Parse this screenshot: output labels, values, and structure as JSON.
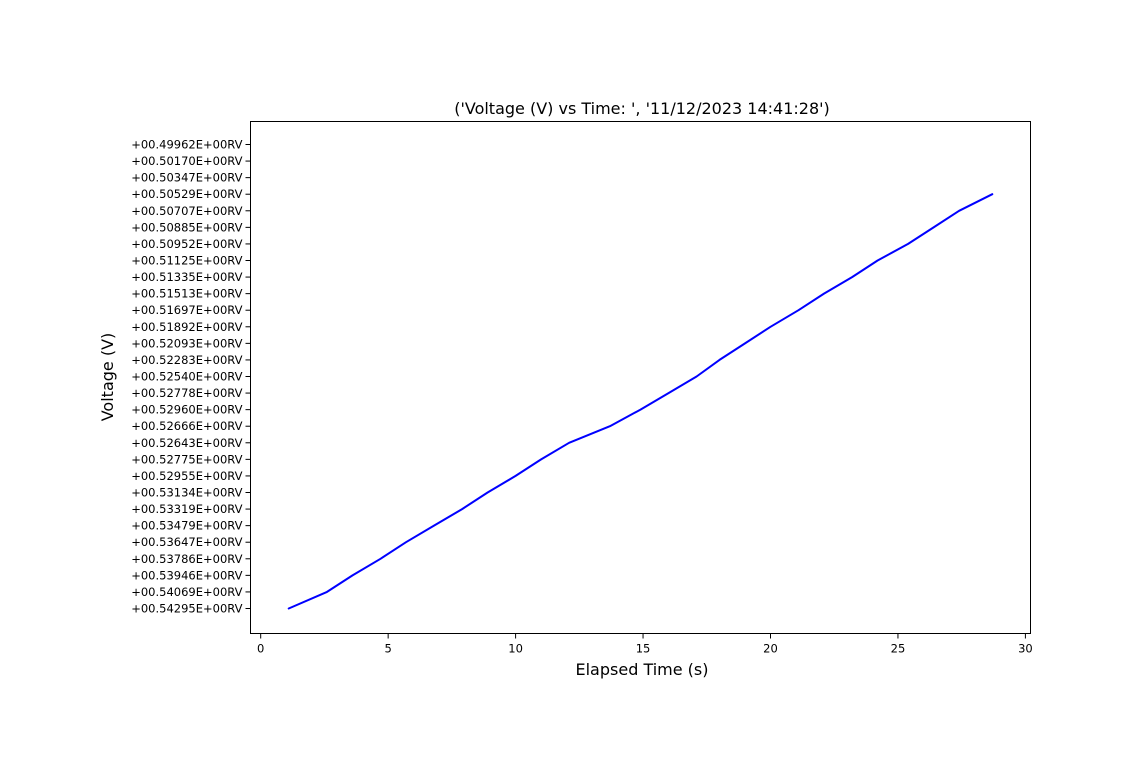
{
  "chart_data": {
    "type": "line",
    "title": "('Voltage (V) vs Time: ', '11/12/2023 14:41:28')",
    "xlabel": "Elapsed Time (s)",
    "ylabel": "Voltage (V)",
    "xlim": [
      -0.4,
      30.2
    ],
    "x_ticks": [
      0,
      5,
      10,
      15,
      20,
      25,
      30
    ],
    "y_categories": [
      "+00.54295E+00RV",
      "+00.54069E+00RV",
      "+00.53946E+00RV",
      "+00.53786E+00RV",
      "+00.53647E+00RV",
      "+00.53479E+00RV",
      "+00.53319E+00RV",
      "+00.53134E+00RV",
      "+00.52955E+00RV",
      "+00.52775E+00RV",
      "+00.52643E+00RV",
      "+00.52666E+00RV",
      "+00.52960E+00RV",
      "+00.52778E+00RV",
      "+00.52540E+00RV",
      "+00.52283E+00RV",
      "+00.52093E+00RV",
      "+00.51892E+00RV",
      "+00.51697E+00RV",
      "+00.51513E+00RV",
      "+00.51335E+00RV",
      "+00.51125E+00RV",
      "+00.50952E+00RV",
      "+00.50885E+00RV",
      "+00.50707E+00RV",
      "+00.50529E+00RV",
      "+00.50347E+00RV",
      "+00.50170E+00RV",
      "+00.49962E+00RV"
    ],
    "series": [
      {
        "color": "#0000ff",
        "x": [
          1.1,
          2.6,
          3.6,
          4.7,
          5.7,
          6.8,
          7.9,
          8.9,
          10.0,
          11.0,
          12.1,
          13.7,
          14.9,
          16.0,
          17.1,
          18.0,
          19.0,
          20.0,
          21.1,
          22.1,
          23.2,
          24.2,
          25.4,
          26.4,
          27.4,
          28.7
        ],
        "y": [
          "+00.54295E+00RV",
          "+00.54069E+00RV",
          "+00.53946E+00RV",
          "+00.53786E+00RV",
          "+00.53647E+00RV",
          "+00.53479E+00RV",
          "+00.53319E+00RV",
          "+00.53134E+00RV",
          "+00.52955E+00RV",
          "+00.52775E+00RV",
          "+00.52643E+00RV",
          "+00.52666E+00RV",
          "+00.52960E+00RV",
          "+00.52778E+00RV",
          "+00.52540E+00RV",
          "+00.52283E+00RV",
          "+00.52093E+00RV",
          "+00.51892E+00RV",
          "+00.51697E+00RV",
          "+00.51513E+00RV",
          "+00.51335E+00RV",
          "+00.51125E+00RV",
          "+00.50952E+00RV",
          "+00.50885E+00RV",
          "+00.50707E+00RV",
          "+00.50529E+00RV"
        ]
      }
    ],
    "grid": false,
    "legend": "none"
  }
}
